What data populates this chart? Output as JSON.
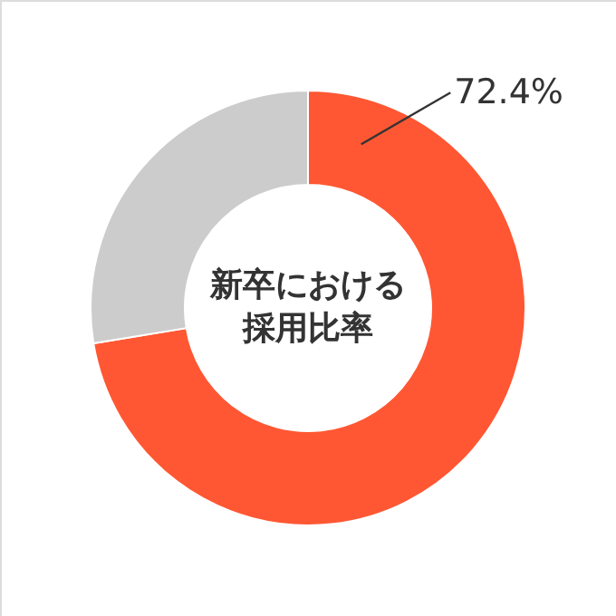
{
  "chart_data": {
    "type": "donut",
    "title": "新卒における採用比率",
    "categories": [
      null,
      null
    ],
    "values": [
      72.4,
      27.6
    ],
    "colors": [
      "#ff5733",
      "#cccccc"
    ],
    "value_labels": [
      "72.4%",
      null
    ]
  }
}
